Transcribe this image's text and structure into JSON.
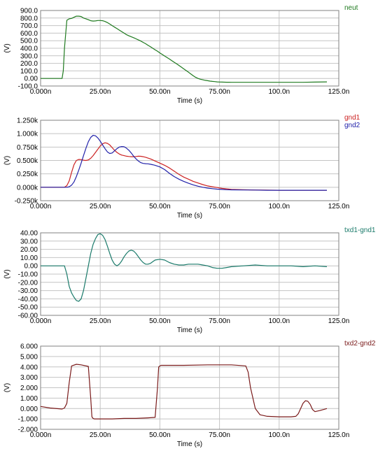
{
  "chart_data": [
    {
      "type": "line",
      "ylabel": "(V)",
      "xlabel": "Time (s)",
      "x_ticks": [
        "0.000n",
        "25.00n",
        "50.00n",
        "75.00n",
        "100.0n",
        "125.0n"
      ],
      "xlim": [
        0,
        125
      ],
      "y_ticks": [
        "900.0",
        "800.0",
        "700.0",
        "600.0",
        "500.0",
        "400.0",
        "300.0",
        "200.0",
        "100.0",
        "0.00",
        "-100.0"
      ],
      "ylim": [
        -100,
        900
      ],
      "grid": true,
      "legend_position": "top-right",
      "series": [
        {
          "name": "neut",
          "color": "#1f7a1f",
          "x": [
            0,
            9,
            9.5,
            10,
            11,
            12,
            13,
            14,
            15,
            16,
            17,
            18,
            19,
            20,
            21,
            22,
            23,
            24,
            25,
            26,
            27,
            28,
            29,
            30,
            31,
            32,
            33,
            34,
            35,
            36,
            37,
            38,
            39,
            40,
            41,
            42,
            43,
            44,
            45,
            46,
            47,
            48,
            49,
            50,
            51,
            52,
            53,
            54,
            55,
            56,
            57,
            58,
            59,
            60,
            61,
            62,
            63,
            64,
            65,
            66,
            67,
            68,
            69,
            70,
            71,
            72,
            73,
            74,
            75,
            76,
            77,
            78,
            79,
            80,
            85,
            90,
            95,
            100,
            105,
            110,
            115,
            120
          ],
          "y": [
            0,
            0,
            100,
            400,
            770,
            790,
            795,
            810,
            825,
            825,
            820,
            800,
            790,
            778,
            765,
            760,
            762,
            768,
            768,
            765,
            755,
            740,
            720,
            700,
            680,
            660,
            640,
            620,
            600,
            580,
            565,
            552,
            540,
            525,
            510,
            495,
            478,
            460,
            440,
            420,
            400,
            380,
            360,
            338,
            318,
            297,
            277,
            257,
            236,
            215,
            194,
            172,
            150,
            127,
            105,
            82,
            58,
            35,
            15,
            0,
            -10,
            -18,
            -25,
            -30,
            -35,
            -39,
            -42,
            -45,
            -47,
            -48,
            -49,
            -50,
            -50,
            -51,
            -51,
            -51,
            -51,
            -51,
            -51,
            -51,
            -48,
            -45
          ]
        }
      ]
    },
    {
      "type": "line",
      "ylabel": "(V)",
      "xlabel": "Time (s)",
      "x_ticks": [
        "0.000n",
        "25.00n",
        "50.00n",
        "75.00n",
        "100.0n",
        "125.0n"
      ],
      "xlim": [
        0,
        125
      ],
      "y_ticks": [
        "1.250k",
        "1.000k",
        "0.750k",
        "0.500k",
        "0.250k",
        "0.000k",
        "-0.250k"
      ],
      "ylim": [
        -250,
        1250
      ],
      "grid": true,
      "legend_position": "top-right",
      "series": [
        {
          "name": "gnd1",
          "color": "#cc2222",
          "x": [
            0,
            10,
            11,
            12,
            13,
            14,
            15,
            16,
            17,
            18,
            19,
            20,
            21,
            22,
            23,
            24,
            25,
            26,
            27,
            28,
            29,
            30,
            31,
            32,
            33,
            34,
            35,
            36,
            37,
            38,
            39,
            40,
            41,
            42,
            43,
            44,
            45,
            46,
            47,
            48,
            49,
            50,
            52,
            54,
            56,
            58,
            60,
            62,
            64,
            66,
            68,
            70,
            72,
            74,
            76,
            78,
            80,
            85,
            90,
            95,
            100,
            105,
            110,
            115,
            120
          ],
          "y": [
            0,
            0,
            30,
            120,
            280,
            420,
            500,
            520,
            515,
            505,
            500,
            510,
            540,
            590,
            650,
            710,
            770,
            810,
            830,
            820,
            790,
            740,
            690,
            650,
            620,
            600,
            590,
            580,
            575,
            570,
            570,
            575,
            580,
            578,
            570,
            560,
            545,
            530,
            510,
            490,
            470,
            450,
            410,
            360,
            300,
            240,
            190,
            150,
            110,
            80,
            50,
            25,
            10,
            -5,
            -20,
            -30,
            -40,
            -45,
            -50,
            -52,
            -55,
            -55,
            -55,
            -55,
            -55
          ]
        },
        {
          "name": "gnd2",
          "color": "#2222aa",
          "x": [
            0,
            10,
            11,
            12,
            13,
            14,
            15,
            16,
            17,
            18,
            19,
            20,
            21,
            22,
            23,
            24,
            25,
            26,
            27,
            28,
            29,
            30,
            31,
            32,
            33,
            34,
            35,
            36,
            37,
            38,
            39,
            40,
            41,
            42,
            43,
            44,
            45,
            46,
            47,
            48,
            49,
            50,
            52,
            54,
            56,
            58,
            60,
            62,
            64,
            66,
            68,
            70,
            72,
            74,
            76,
            78,
            80,
            85,
            90,
            95,
            100,
            105,
            110,
            115,
            120
          ],
          "y": [
            0,
            0,
            0,
            10,
            40,
            100,
            200,
            320,
            450,
            590,
            730,
            850,
            930,
            970,
            960,
            920,
            860,
            790,
            720,
            660,
            630,
            640,
            680,
            720,
            750,
            760,
            755,
            730,
            690,
            640,
            580,
            530,
            490,
            460,
            445,
            440,
            438,
            430,
            420,
            410,
            395,
            380,
            330,
            260,
            200,
            150,
            110,
            75,
            45,
            20,
            0,
            -15,
            -25,
            -35,
            -40,
            -45,
            -48,
            -50,
            -52,
            -55,
            -55,
            -55,
            -55,
            -55,
            -55
          ]
        }
      ]
    },
    {
      "type": "line",
      "ylabel": "(V)",
      "xlabel": "Time (s)",
      "x_ticks": [
        "0.000n",
        "25.00n",
        "50.00n",
        "75.00n",
        "100.0n",
        "125.0n"
      ],
      "xlim": [
        0,
        125
      ],
      "y_ticks": [
        "40.00",
        "30.00",
        "20.00",
        "10.00",
        "0.00",
        "-10.00",
        "-20.00",
        "-30.00",
        "-40.00",
        "-50.00",
        "-60.00"
      ],
      "ylim": [
        -60,
        40
      ],
      "grid": true,
      "legend_position": "top-right",
      "series": [
        {
          "name": "txd1-gnd1",
          "color": "#1a7a6a",
          "x": [
            0,
            10,
            11,
            12,
            13,
            14,
            15,
            16,
            17,
            18,
            19,
            20,
            21,
            22,
            23,
            24,
            25,
            26,
            27,
            28,
            29,
            30,
            31,
            32,
            33,
            34,
            35,
            36,
            37,
            38,
            39,
            40,
            41,
            42,
            43,
            44,
            45,
            46,
            47,
            48,
            50,
            52,
            54,
            56,
            58,
            60,
            62,
            64,
            66,
            68,
            70,
            72,
            74,
            76,
            78,
            80,
            85,
            90,
            95,
            100,
            105,
            110,
            115,
            120
          ],
          "y": [
            0,
            0,
            -10,
            -25,
            -33,
            -38,
            -42,
            -43,
            -40,
            -30,
            -15,
            0,
            15,
            26,
            33,
            38,
            39,
            37,
            32,
            24,
            15,
            7,
            2,
            0,
            2,
            6,
            11,
            15,
            18,
            19,
            18,
            15,
            11,
            7,
            4,
            2,
            2,
            3,
            5,
            7,
            8,
            7,
            4,
            2,
            1,
            1,
            2,
            2,
            2,
            1,
            0,
            -2,
            -3,
            -3,
            -2,
            -1,
            0,
            1,
            0,
            0,
            0,
            -1,
            0,
            -1
          ]
        }
      ]
    },
    {
      "type": "line",
      "ylabel": "(V)",
      "xlabel": "Time (s)",
      "x_ticks": [
        "0.000n",
        "25.00n",
        "50.00n",
        "75.00n",
        "100.0n",
        "125.0n"
      ],
      "xlim": [
        0,
        125
      ],
      "y_ticks": [
        "6.000",
        "5.000",
        "4.000",
        "3.000",
        "2.000",
        "1.000",
        "0.000",
        "-1.000",
        "-2.000"
      ],
      "ylim": [
        -2,
        6
      ],
      "grid": true,
      "legend_position": "top-right",
      "series": [
        {
          "name": "txd2-gnd2",
          "color": "#7a1a1a",
          "x": [
            0,
            4,
            9,
            10,
            11,
            12,
            13,
            15,
            17,
            20,
            21,
            21.5,
            22,
            22.5,
            25,
            30,
            35,
            40,
            45,
            48,
            49,
            49.5,
            50,
            50.5,
            55,
            60,
            70,
            80,
            86,
            87,
            88,
            90,
            92,
            95,
            100,
            105,
            107,
            108,
            109,
            110,
            111,
            112,
            113,
            114,
            115,
            117,
            120
          ],
          "y": [
            0.2,
            0.05,
            -0.05,
            0.05,
            0.5,
            2.5,
            4.1,
            4.25,
            4.2,
            4.05,
            1.0,
            -0.8,
            -0.95,
            -1.0,
            -1.0,
            -1.0,
            -0.95,
            -0.95,
            -0.9,
            -0.85,
            2.0,
            4.0,
            4.1,
            4.15,
            4.15,
            4.15,
            4.2,
            4.2,
            4.1,
            3.5,
            2.0,
            0.0,
            -0.6,
            -0.75,
            -0.8,
            -0.8,
            -0.75,
            -0.5,
            0.0,
            0.5,
            0.75,
            0.7,
            0.4,
            -0.1,
            -0.3,
            -0.2,
            0.0
          ]
        }
      ]
    }
  ]
}
